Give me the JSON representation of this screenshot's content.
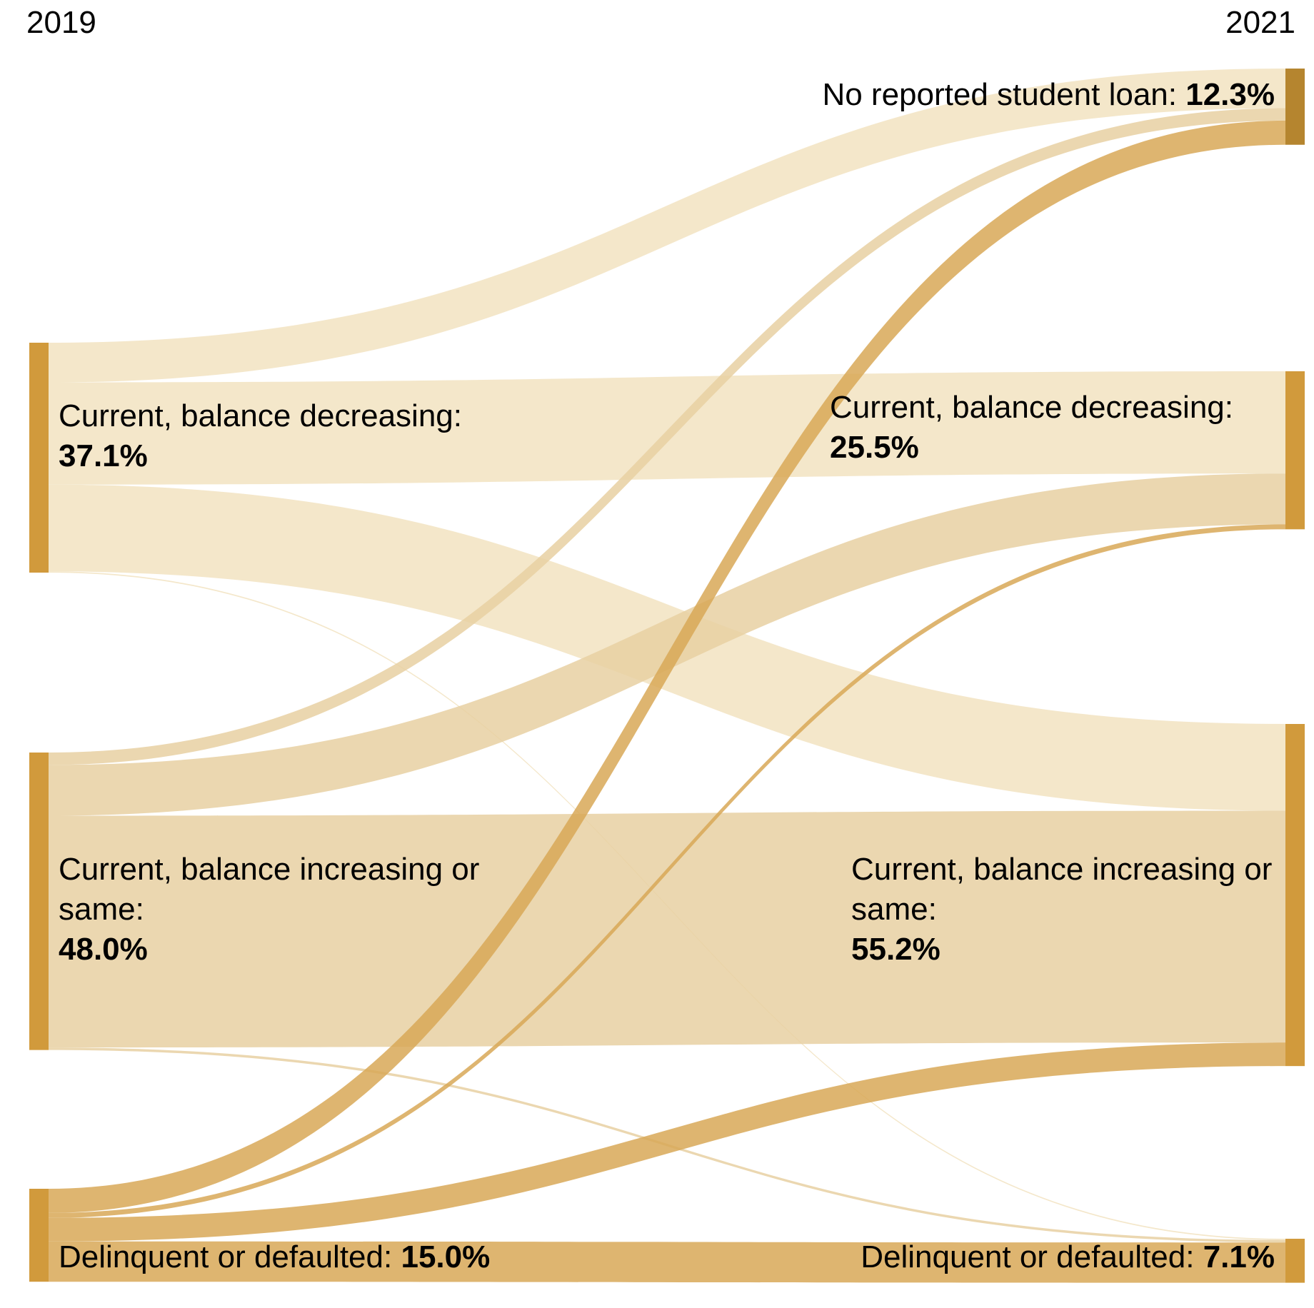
{
  "chart_data": {
    "type": "sankey",
    "title": "",
    "source_year": "2019",
    "target_year": "2021",
    "source_nodes": [
      {
        "id": "s_dec",
        "name": "Current, balance decreasing:",
        "value_label": "37.1%",
        "value": 37.1
      },
      {
        "id": "s_inc",
        "name": "Current, balance increasing or same:",
        "value_label": "48.0%",
        "value": 48.0
      },
      {
        "id": "s_del",
        "name": "Delinquent or defaulted:",
        "value_label": "15.0%",
        "value": 15.0
      }
    ],
    "target_nodes": [
      {
        "id": "t_none",
        "name": "No reported student loan:",
        "value_label": "12.3%",
        "value": 12.3
      },
      {
        "id": "t_dec",
        "name": "Current, balance decreasing:",
        "value_label": "25.5%",
        "value": 25.5
      },
      {
        "id": "t_inc",
        "name": "Current, balance increasing or same:",
        "value_label": "55.2%",
        "value": 55.2
      },
      {
        "id": "t_del",
        "name": "Delinquent or defaulted:",
        "value_label": "7.1%",
        "value": 7.1
      }
    ],
    "flows": [
      {
        "from": "s_dec",
        "to": "t_none",
        "value": 6.4
      },
      {
        "from": "s_dec",
        "to": "t_dec",
        "value": 16.5
      },
      {
        "from": "s_dec",
        "to": "t_inc",
        "value": 14.0
      },
      {
        "from": "s_dec",
        "to": "t_del",
        "value": 0.2
      },
      {
        "from": "s_inc",
        "to": "t_none",
        "value": 2.0
      },
      {
        "from": "s_inc",
        "to": "t_dec",
        "value": 8.2
      },
      {
        "from": "s_inc",
        "to": "t_inc",
        "value": 37.4
      },
      {
        "from": "s_inc",
        "to": "t_del",
        "value": 0.4
      },
      {
        "from": "s_del",
        "to": "t_none",
        "value": 3.9
      },
      {
        "from": "s_del",
        "to": "t_dec",
        "value": 0.8
      },
      {
        "from": "s_del",
        "to": "t_inc",
        "value": 3.8
      },
      {
        "from": "s_del",
        "to": "t_del",
        "value": 6.5
      }
    ],
    "colors": {
      "node": "#d19a3c",
      "node_none": "#b5852f",
      "flow_from_s_dec": "#f2e3c1",
      "flow_from_s_inc": "#e7d0a2",
      "flow_from_s_del": "#d8a857"
    }
  }
}
